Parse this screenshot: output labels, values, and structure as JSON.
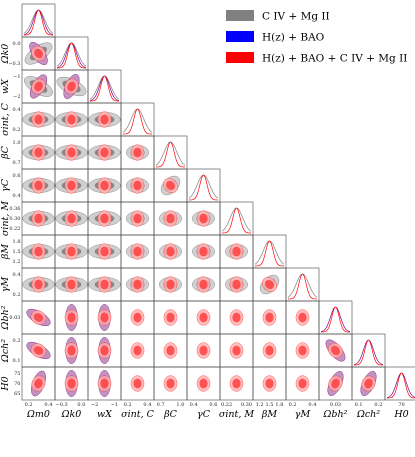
{
  "chart_data": {
    "type": "corner",
    "parameters": [
      {
        "id": "Om0",
        "label": "Ωm0",
        "ticks": [
          "0.2",
          "0.4"
        ]
      },
      {
        "id": "Ok0",
        "label": "Ωk0",
        "ticks": [
          "−0.3",
          "0.0"
        ]
      },
      {
        "id": "wX",
        "label": "wX",
        "ticks": [
          "−2",
          "−1"
        ]
      },
      {
        "id": "sigC",
        "label": "σint, C",
        "ticks": [
          "0.2",
          "0.4"
        ]
      },
      {
        "id": "betaC",
        "label": "βC",
        "ticks": [
          "0.7",
          "1.0"
        ]
      },
      {
        "id": "gamC",
        "label": "γC",
        "ticks": [
          "0.4",
          "0.6"
        ]
      },
      {
        "id": "sigM",
        "label": "σint, M",
        "ticks": [
          "0.22",
          "0.30"
        ]
      },
      {
        "id": "betaM",
        "label": "βM",
        "ticks": [
          "1.2",
          "1.5",
          "1.8"
        ]
      },
      {
        "id": "gamM",
        "label": "γM",
        "ticks": [
          "0.2",
          "0.4"
        ]
      },
      {
        "id": "Obh2",
        "label": "Ωbh²",
        "ticks": [
          "0.03"
        ]
      },
      {
        "id": "Och2",
        "label": "Ωch²",
        "ticks": [
          "0.1",
          "0.2"
        ]
      },
      {
        "id": "H0",
        "label": "H0",
        "ticks": [
          "70"
        ]
      }
    ],
    "y_ticks": {
      "Ok0": [
        "0.0",
        "−0.3"
      ],
      "wX": [
        "−1",
        "−2"
      ],
      "sigC": [
        "0.4",
        "0.2"
      ],
      "betaC": [
        "1.0",
        "0.7"
      ],
      "gamC": [
        "0.6",
        "0.4"
      ],
      "sigM": [
        "0.36",
        "0.30",
        "0.22"
      ],
      "betaM": [
        "1.8",
        "1.5",
        "1.2"
      ],
      "gamM": [
        "0.4",
        "0.2"
      ],
      "Obh2": [
        "0.03"
      ],
      "Och2": [
        "0.2",
        "0.1"
      ],
      "H0": [
        "75",
        "70",
        "65"
      ]
    },
    "series": [
      {
        "name": "C IV + Mg II",
        "color": "#808080",
        "params": [
          "Om0",
          "Ok0",
          "wX",
          "sigC",
          "betaC",
          "gamC",
          "sigM",
          "betaM",
          "gamM"
        ]
      },
      {
        "name": "H(z) + BAO",
        "color": "#0000ff",
        "params": [
          "Om0",
          "Ok0",
          "wX",
          "Obh2",
          "Och2",
          "H0"
        ]
      },
      {
        "name": "H(z) + BAO + C IV + Mg II",
        "color": "#ff0000",
        "params": [
          "Om0",
          "Ok0",
          "wX",
          "sigC",
          "betaC",
          "gamC",
          "sigM",
          "betaM",
          "gamM",
          "Obh2",
          "Och2",
          "H0"
        ]
      }
    ],
    "legend_position": "top-right"
  }
}
